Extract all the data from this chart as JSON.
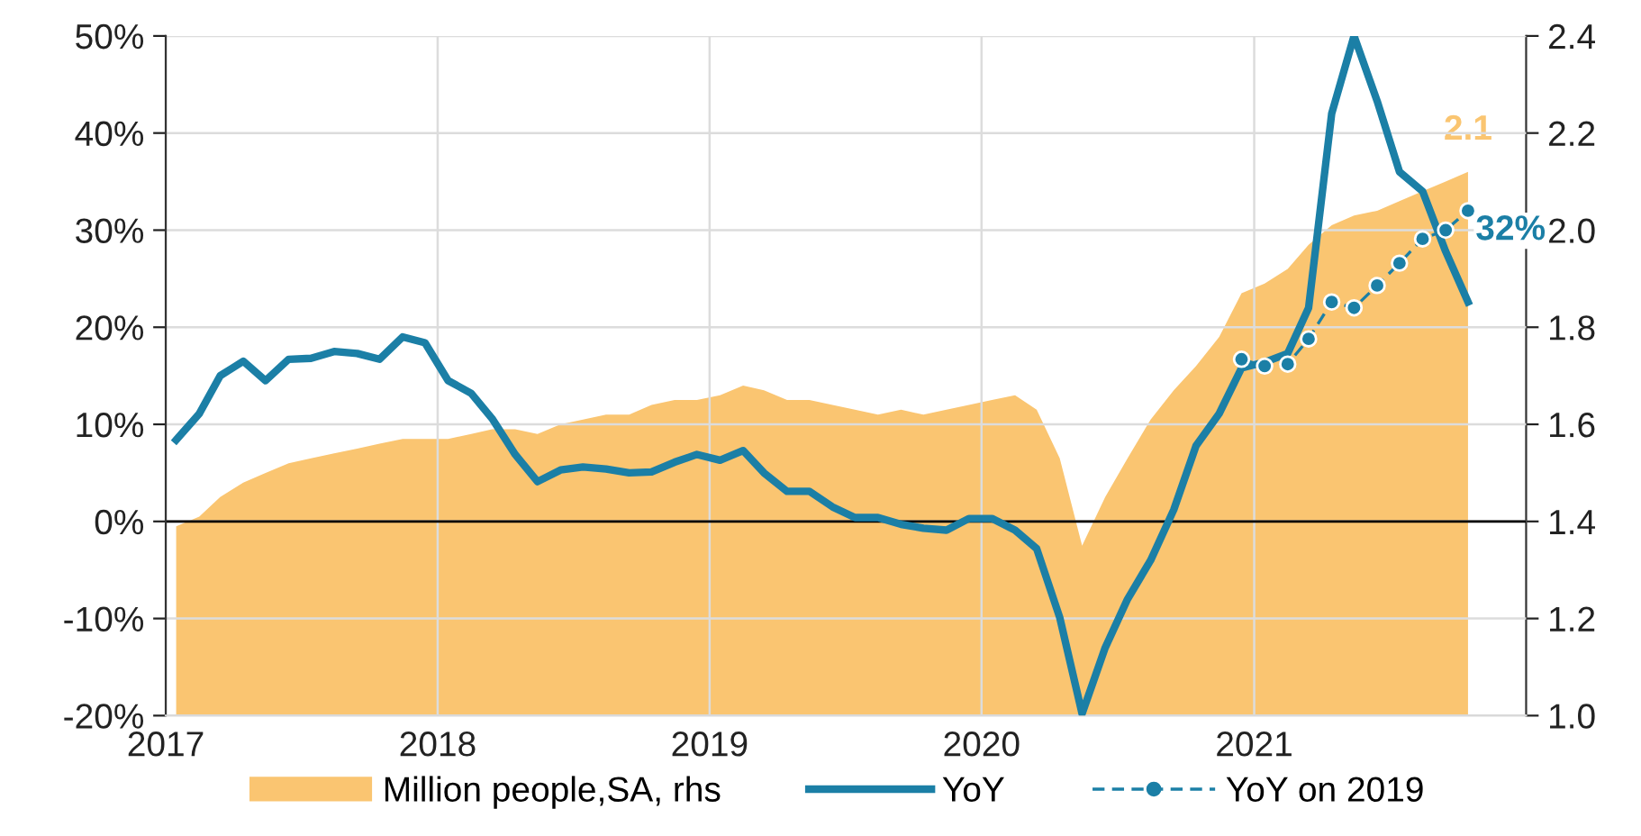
{
  "chart_data": {
    "type": "line",
    "x": [
      "2017-01-15",
      "2017-02-15",
      "2017-03-15",
      "2017-04-15",
      "2017-05-15",
      "2017-06-15",
      "2017-07-15",
      "2017-08-15",
      "2017-09-15",
      "2017-10-15",
      "2017-11-15",
      "2017-12-15",
      "2018-01-15",
      "2018-02-15",
      "2018-03-15",
      "2018-04-15",
      "2018-05-15",
      "2018-06-15",
      "2018-07-15",
      "2018-08-15",
      "2018-09-15",
      "2018-10-15",
      "2018-11-15",
      "2018-12-15",
      "2019-01-15",
      "2019-02-15",
      "2019-03-15",
      "2019-04-15",
      "2019-05-15",
      "2019-06-15",
      "2019-07-15",
      "2019-08-15",
      "2019-09-15",
      "2019-10-15",
      "2019-11-15",
      "2019-12-15",
      "2020-01-15",
      "2020-02-15",
      "2020-03-15",
      "2020-04-15",
      "2020-05-15",
      "2020-06-15",
      "2020-07-15",
      "2020-08-15",
      "2020-09-15",
      "2020-10-15",
      "2020-11-15",
      "2020-12-15",
      "2021-01-15",
      "2021-02-15",
      "2021-03-15",
      "2021-04-15",
      "2021-05-15",
      "2021-06-15",
      "2021-07-15",
      "2021-08-15",
      "2021-09-15",
      "2021-10-15"
    ],
    "xlim": [
      "2017",
      "2022"
    ],
    "xticks": [
      "2017",
      "2018",
      "2019",
      "2020",
      "2021"
    ],
    "ylim": [
      -20,
      50
    ],
    "yticks": [
      {
        "value": -20,
        "label": "-20%"
      },
      {
        "value": -10,
        "label": "-10%"
      },
      {
        "value": 0,
        "label": "0%"
      },
      {
        "value": 10,
        "label": "10%"
      },
      {
        "value": 20,
        "label": "20%"
      },
      {
        "value": 30,
        "label": "30%"
      },
      {
        "value": 40,
        "label": "40%"
      },
      {
        "value": 50,
        "label": "50%"
      }
    ],
    "y2lim": [
      1.0,
      2.4
    ],
    "y2ticks": [
      {
        "value": 1.0,
        "label": "1.0"
      },
      {
        "value": 1.2,
        "label": "1.2"
      },
      {
        "value": 1.4,
        "label": "1.4"
      },
      {
        "value": 1.6,
        "label": "1.6"
      },
      {
        "value": 1.8,
        "label": "1.8"
      },
      {
        "value": 2.0,
        "label": "2.0"
      },
      {
        "value": 2.2,
        "label": "2.2"
      },
      {
        "value": 2.4,
        "label": "2.4"
      }
    ],
    "series": [
      {
        "name": "Million people,SA, rhs",
        "type": "area",
        "axis": "y2",
        "color": "#fac571",
        "values": [
          1.39,
          1.41,
          1.45,
          1.48,
          1.5,
          1.52,
          1.53,
          1.54,
          1.55,
          1.56,
          1.57,
          1.57,
          1.57,
          1.58,
          1.59,
          1.59,
          1.58,
          1.6,
          1.61,
          1.62,
          1.62,
          1.64,
          1.65,
          1.65,
          1.66,
          1.68,
          1.67,
          1.65,
          1.65,
          1.64,
          1.63,
          1.62,
          1.63,
          1.62,
          1.63,
          1.64,
          1.65,
          1.66,
          1.63,
          1.53,
          1.35,
          1.45,
          1.53,
          1.61,
          1.67,
          1.72,
          1.78,
          1.87,
          1.89,
          1.92,
          1.97,
          2.01,
          2.03,
          2.04,
          2.06,
          2.08,
          2.1,
          2.12
        ],
        "value_labels": [
          null,
          null,
          null,
          null,
          null,
          null,
          null,
          null,
          null,
          null,
          null,
          null,
          null,
          null,
          null,
          null,
          null,
          null,
          null,
          null,
          null,
          null,
          null,
          null,
          null,
          null,
          null,
          null,
          null,
          null,
          null,
          null,
          null,
          null,
          null,
          null,
          null,
          null,
          null,
          null,
          null,
          null,
          null,
          null,
          null,
          null,
          null,
          null,
          null,
          null,
          null,
          null,
          null,
          null,
          null,
          null,
          null,
          "2.1"
        ]
      },
      {
        "name": "YoY",
        "color": "#1b7fa6",
        "line_style": "solid",
        "marker": "none",
        "values": [
          8.4,
          11.1,
          15.0,
          16.5,
          14.5,
          16.7,
          16.8,
          17.5,
          17.3,
          16.7,
          19.0,
          18.4,
          14.5,
          13.2,
          10.6,
          6.9,
          4.1,
          5.3,
          5.6,
          5.4,
          5.0,
          5.1,
          6.1,
          6.9,
          6.3,
          7.3,
          5.0,
          3.1,
          3.1,
          1.5,
          0.4,
          0.4,
          -0.3,
          -0.7,
          -0.9,
          0.3,
          0.3,
          -0.9,
          -2.8,
          -9.9,
          -19.8,
          -13.0,
          -8.0,
          -4.0,
          1.2,
          7.8,
          11.1,
          15.8,
          16.4,
          17.3,
          22,
          42,
          50,
          43.3,
          36,
          34,
          27.8,
          22.6
        ]
      },
      {
        "name": "YoY on 2019",
        "color": "#1b7fa6",
        "line_style": "dashed",
        "marker": "circle",
        "x": [
          "2020-12-15",
          "2021-01-15",
          "2021-02-15",
          "2021-03-15",
          "2021-04-15",
          "2021-05-15",
          "2021-06-15",
          "2021-07-15",
          "2021-08-15",
          "2021-09-15",
          "2021-10-15"
        ],
        "values": [
          16.7,
          16.0,
          16.2,
          18.8,
          22.6,
          22.0,
          24.3,
          26.6,
          29.1,
          30.0,
          32
        ],
        "value_labels": [
          null,
          null,
          null,
          null,
          null,
          null,
          null,
          null,
          null,
          null,
          "32%"
        ]
      }
    ],
    "ref_lines": [
      {
        "axis": "y",
        "value": 0,
        "color": "#000000"
      }
    ],
    "grid": true,
    "legend": "bottom"
  }
}
